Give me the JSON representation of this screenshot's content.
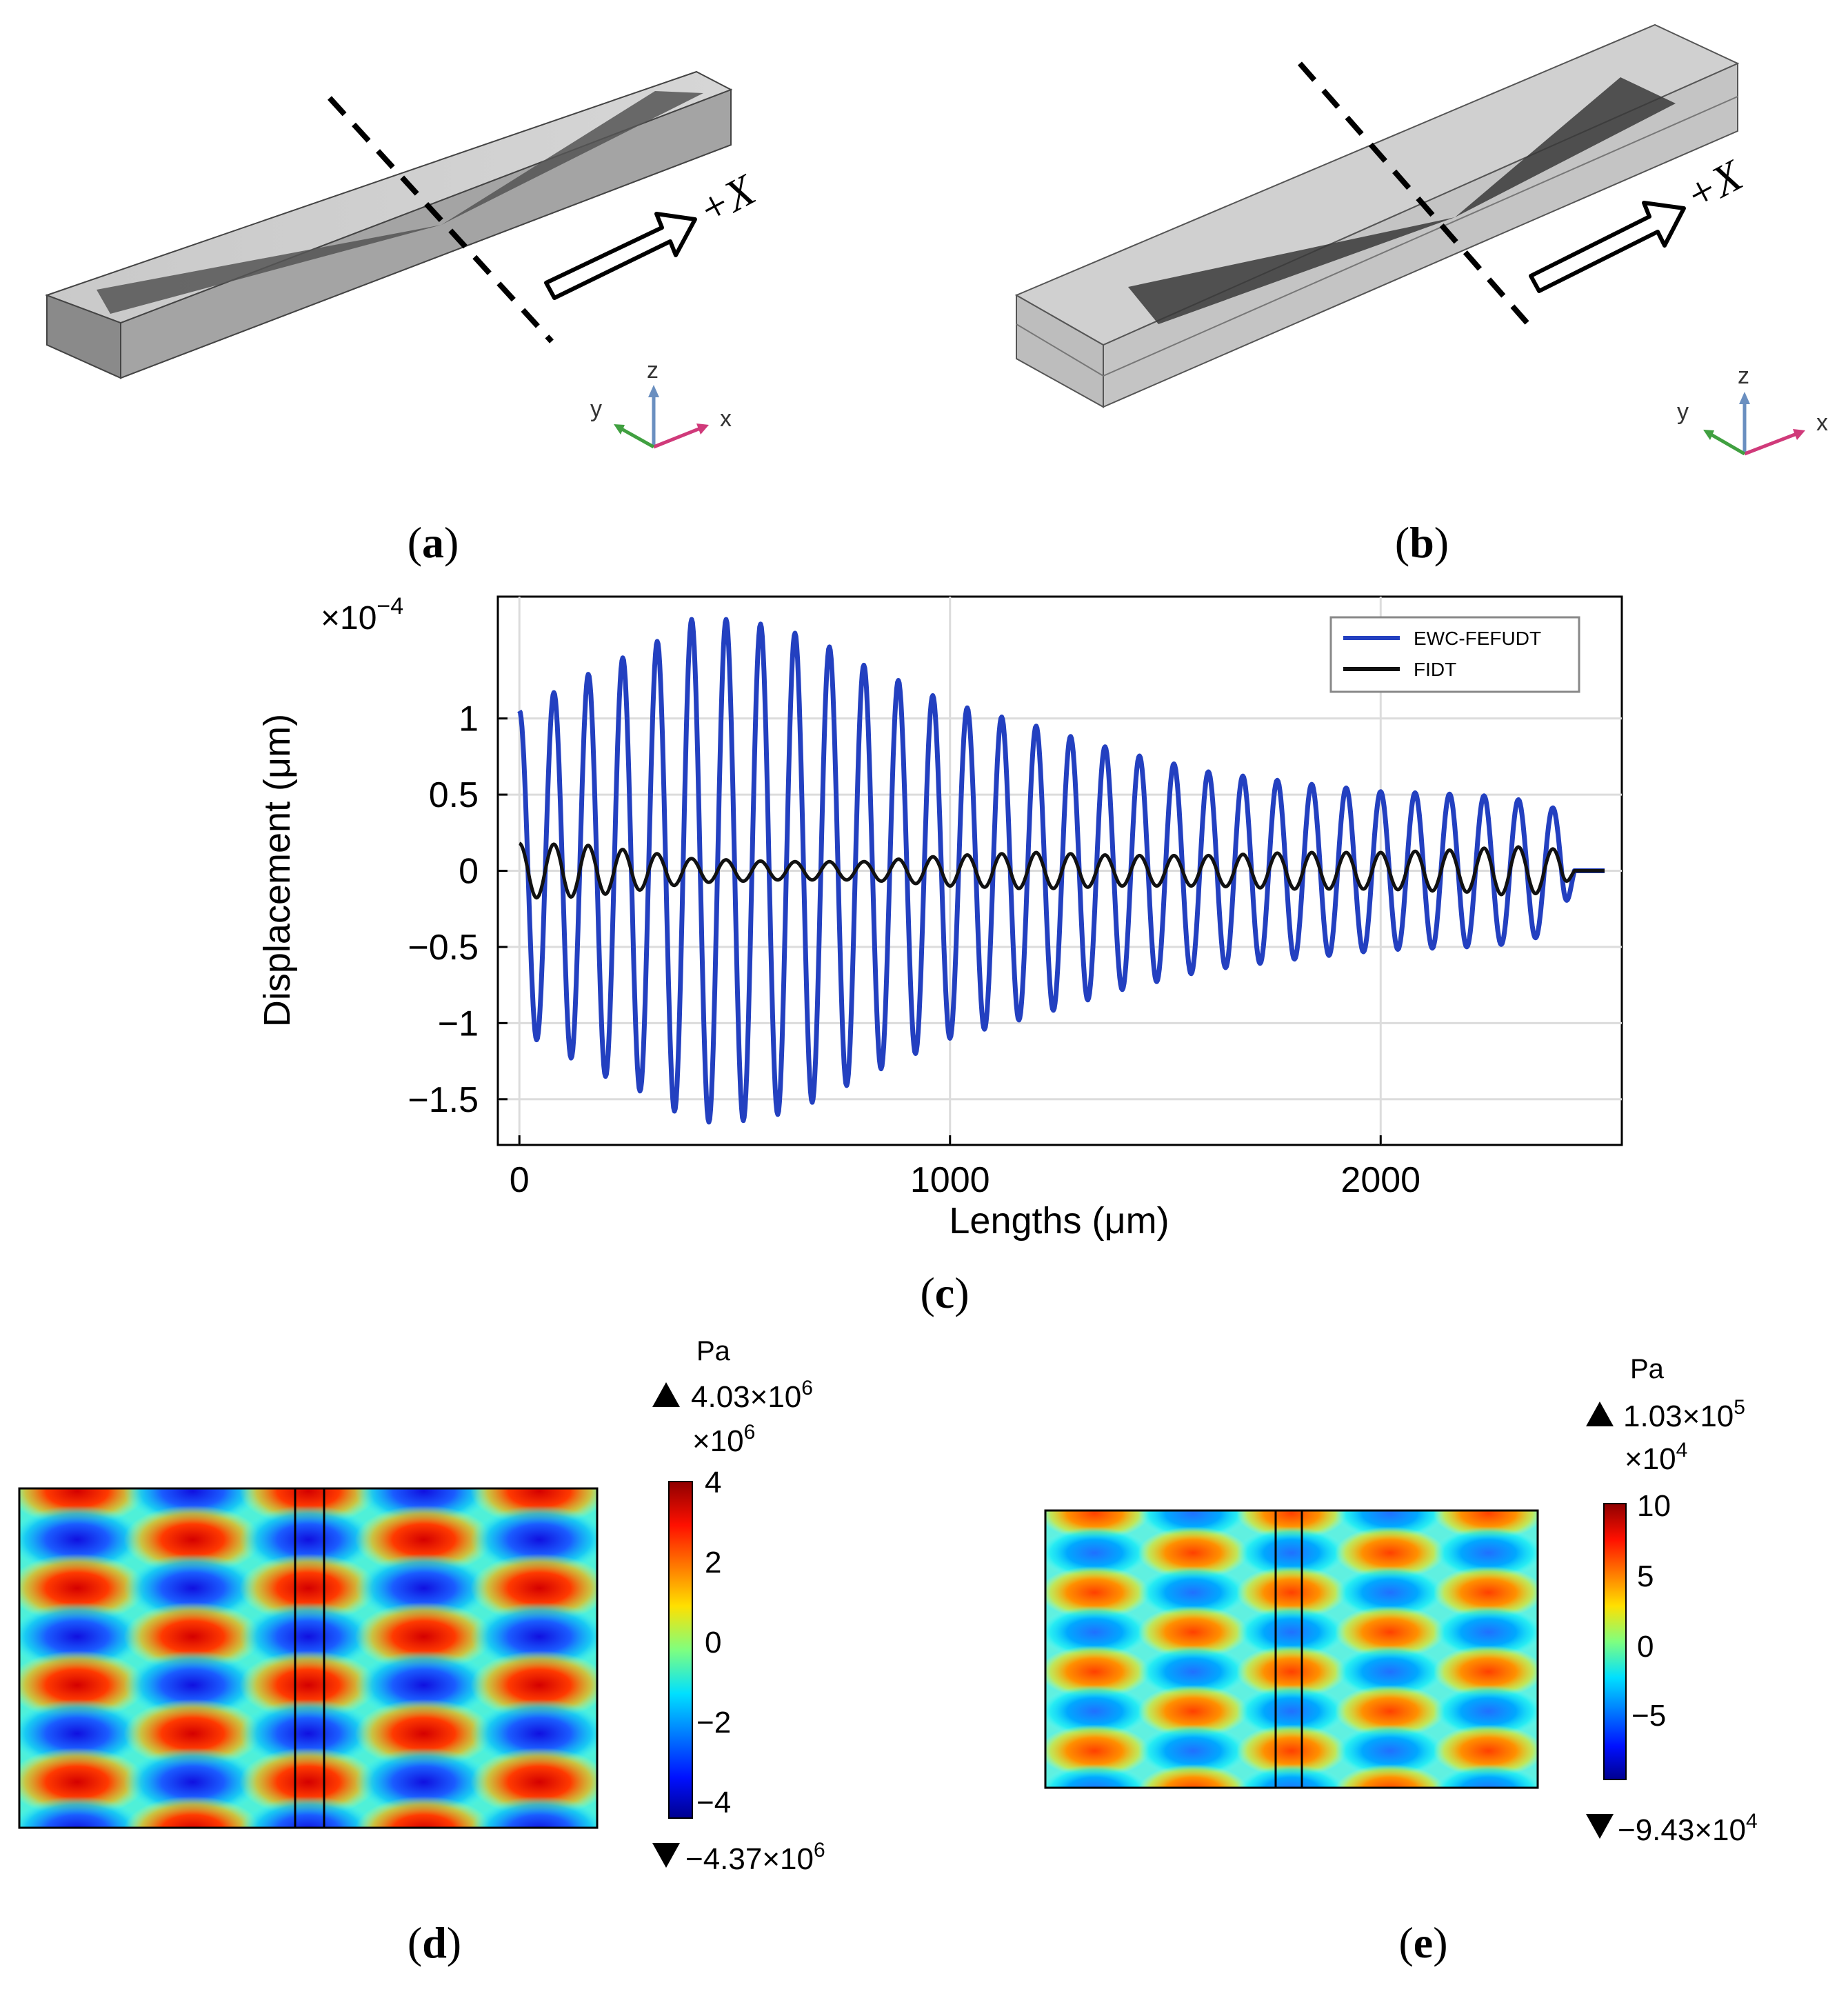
{
  "panels": {
    "a": {
      "label": "a",
      "direction_label": "+X",
      "axes": {
        "x": "x",
        "y": "y",
        "z": "z"
      }
    },
    "b": {
      "label": "b",
      "direction_label": "+X",
      "axes": {
        "x": "x",
        "y": "y",
        "z": "z"
      }
    },
    "c": {
      "label": "c"
    },
    "d": {
      "label": "d",
      "colorbar": {
        "unit": "Pa",
        "max_label": "4.03×10",
        "max_exp": "6",
        "scale_label": "×10",
        "scale_exp": "6",
        "ticks": [
          "4",
          "2",
          "0",
          "−2",
          "−4"
        ],
        "min_label": "−4.37×10",
        "min_exp": "6"
      }
    },
    "e": {
      "label": "e",
      "colorbar": {
        "unit": "Pa",
        "max_label": "1.03×10",
        "max_exp": "5",
        "scale_label": "×10",
        "scale_exp": "4",
        "ticks": [
          "10",
          "5",
          "0",
          "−5"
        ],
        "min_label": "−9.43×10",
        "min_exp": "4"
      }
    }
  },
  "chart_data": {
    "type": "line",
    "title": "",
    "xlabel": "Lengths (μm)",
    "ylabel": "Displacement (μm)",
    "y_multiplier": "×10",
    "y_multiplier_exp": "−4",
    "xlim": [
      -50,
      2560
    ],
    "ylim": [
      -1.8,
      1.8
    ],
    "xticks": [
      0,
      1000,
      2000
    ],
    "xtick_labels": [
      "0",
      "1000",
      "2000"
    ],
    "yticks": [
      1,
      0.5,
      0,
      -0.5,
      -1,
      -1.5
    ],
    "ytick_labels": [
      "1",
      "0.5",
      "0",
      "−0.5",
      "−1",
      "−1.5"
    ],
    "grid": true,
    "legend_position": "top-right",
    "period_um": 80,
    "series": [
      {
        "name": "EWC-FEFUDT",
        "color": "#2340c0",
        "envelope_x": [
          0,
          100,
          200,
          300,
          400,
          500,
          600,
          700,
          800,
          1000,
          1200,
          1400,
          1600,
          1800,
          2000,
          2200,
          2300,
          2420,
          2450,
          2520
        ],
        "envelope_amp": [
          1.05,
          1.2,
          1.35,
          1.47,
          1.65,
          1.65,
          1.6,
          1.5,
          1.35,
          1.1,
          0.95,
          0.78,
          0.65,
          0.58,
          0.52,
          0.5,
          0.48,
          0.4,
          0.0,
          0.0
        ]
      },
      {
        "name": "FIDT",
        "color": "#111111",
        "envelope_x": [
          0,
          150,
          300,
          400,
          600,
          800,
          1000,
          1200,
          1400,
          1600,
          1800,
          2000,
          2200,
          2300,
          2420,
          2450,
          2520
        ],
        "envelope_amp": [
          0.18,
          0.17,
          0.12,
          0.08,
          0.06,
          0.06,
          0.1,
          0.12,
          0.1,
          0.1,
          0.12,
          0.12,
          0.14,
          0.16,
          0.14,
          0.0,
          0.0
        ]
      }
    ]
  }
}
